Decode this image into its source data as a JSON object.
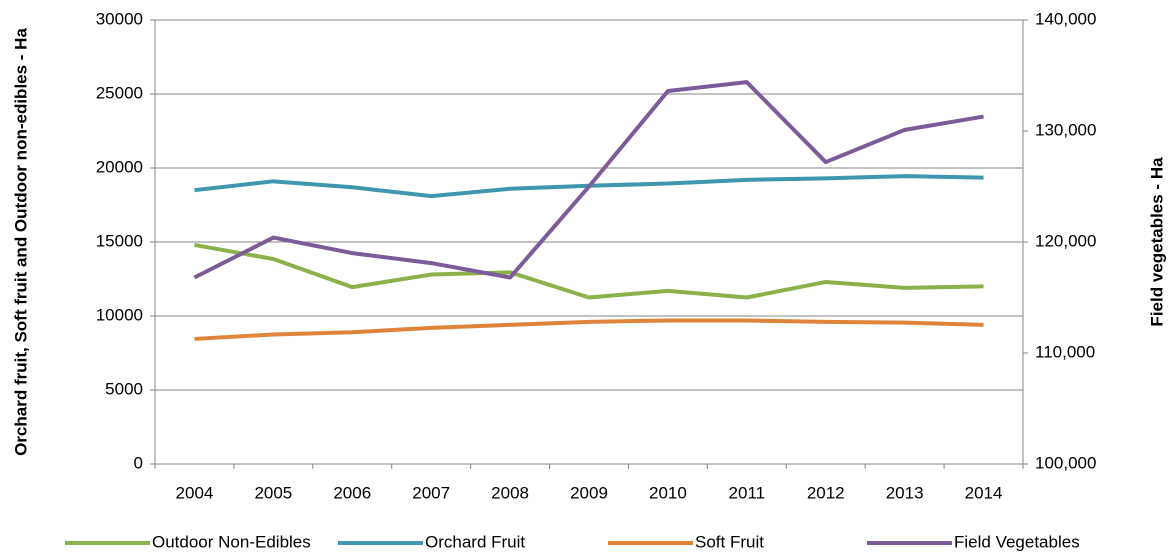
{
  "chart_data": {
    "type": "line",
    "y_label": "Orchard fruit, Soft fruit and Outdoor non-edibles - Ha",
    "y2_label": "Field vegetables - Ha",
    "categories": [
      "2004",
      "2005",
      "2006",
      "2007",
      "2008",
      "2009",
      "2010",
      "2011",
      "2012",
      "2013",
      "2014"
    ],
    "series": [
      {
        "name": "Outdoor Non-Edibles",
        "color": "#8cb04a",
        "values": [
          14800,
          13850,
          11950,
          12800,
          12950,
          11250,
          11700,
          11250,
          12300,
          11900,
          12000
        ]
      },
      {
        "name": "Orchard Fruit",
        "color": "#3f97ad",
        "values": [
          18500,
          19100,
          18700,
          18100,
          18600,
          18800,
          18950,
          19200,
          19300,
          19450,
          19350
        ]
      },
      {
        "name": "Soft Fruit",
        "color": "#e0843a",
        "values": [
          8450,
          8750,
          8900,
          9200,
          9400,
          9600,
          9700,
          9700,
          9600,
          9550,
          9400
        ]
      },
      {
        "name": "Field Vegetables",
        "color": "#7b5c98",
        "axis": "y2",
        "values": [
          116800,
          120400,
          119000,
          118100,
          116800,
          125000,
          133600,
          134400,
          127200,
          130100,
          131300
        ]
      }
    ],
    "ylim": [
      0,
      30000
    ],
    "yticks": [
      0,
      5000,
      10000,
      15000,
      20000,
      25000,
      30000
    ],
    "y2lim": [
      100000,
      140000
    ],
    "y2ticks": [
      {
        "value": 100000,
        "label": "100,000"
      },
      {
        "value": 110000,
        "label": "110,000"
      },
      {
        "value": 120000,
        "label": "120,000"
      },
      {
        "value": 130000,
        "label": "130,000"
      },
      {
        "value": 140000,
        "label": "140,000"
      }
    ],
    "grid": true,
    "legend": "bottom"
  }
}
